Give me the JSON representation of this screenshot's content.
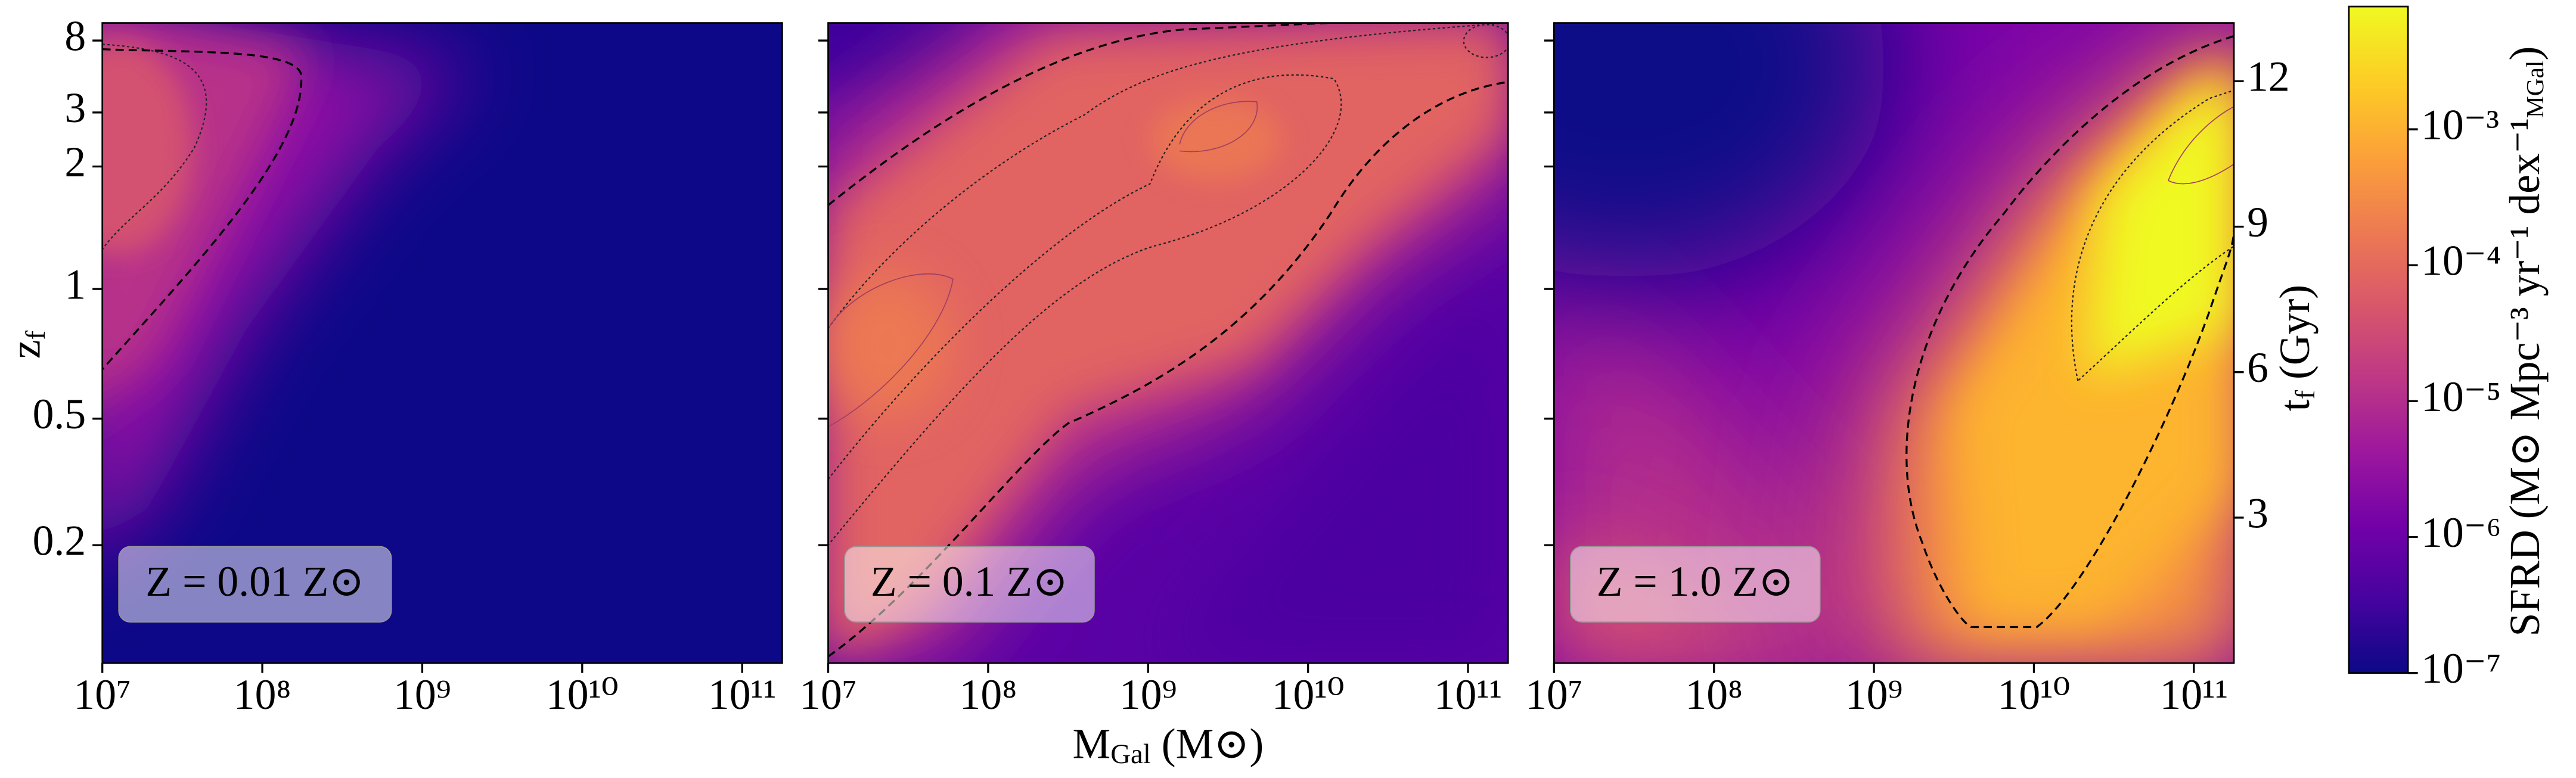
{
  "chart_data": {
    "type": "heatmap",
    "xlabel": [
      "M",
      "Gal",
      " (M⊙)"
    ],
    "xscale": "log",
    "xlim": [
      10000000,
      178000000000
    ],
    "xticks": [
      {
        "value": 10000000,
        "label": "10⁷"
      },
      {
        "value": 100000000,
        "label": "10⁸"
      },
      {
        "value": 1000000000,
        "label": "10⁹"
      },
      {
        "value": 10000000000,
        "label": "10¹⁰"
      },
      {
        "value": 100000000000,
        "label": "10¹¹"
      }
    ],
    "ylabel": [
      "z",
      "f"
    ],
    "yticks": [
      0.2,
      0.5,
      1,
      2,
      3,
      8
    ],
    "y2label": [
      "t",
      "f",
      " (Gyr)"
    ],
    "y2lim": [
      0,
      13.2
    ],
    "y2ticks": [
      3,
      6,
      9,
      12
    ],
    "colorbar": {
      "label": [
        "SFRD (M⊙ Mpc⁻³ yr⁻¹ dex⁻¹",
        "MGal",
        ")"
      ],
      "scale": "log",
      "lim": [
        1e-07,
        0.008
      ],
      "ticks": [
        {
          "value": 1e-07,
          "label": "10⁻⁷"
        },
        {
          "value": 1e-06,
          "label": "10⁻⁶"
        },
        {
          "value": 1e-05,
          "label": "10⁻⁵"
        },
        {
          "value": 0.0001,
          "label": "10⁻⁴"
        },
        {
          "value": 0.001,
          "label": "10⁻³"
        }
      ]
    },
    "panels": [
      {
        "annotation": "Z = 0.01 Z⊙"
      },
      {
        "annotation": "Z = 0.1 Z⊙"
      },
      {
        "annotation": "Z = 1.0 Z⊙"
      }
    ]
  }
}
